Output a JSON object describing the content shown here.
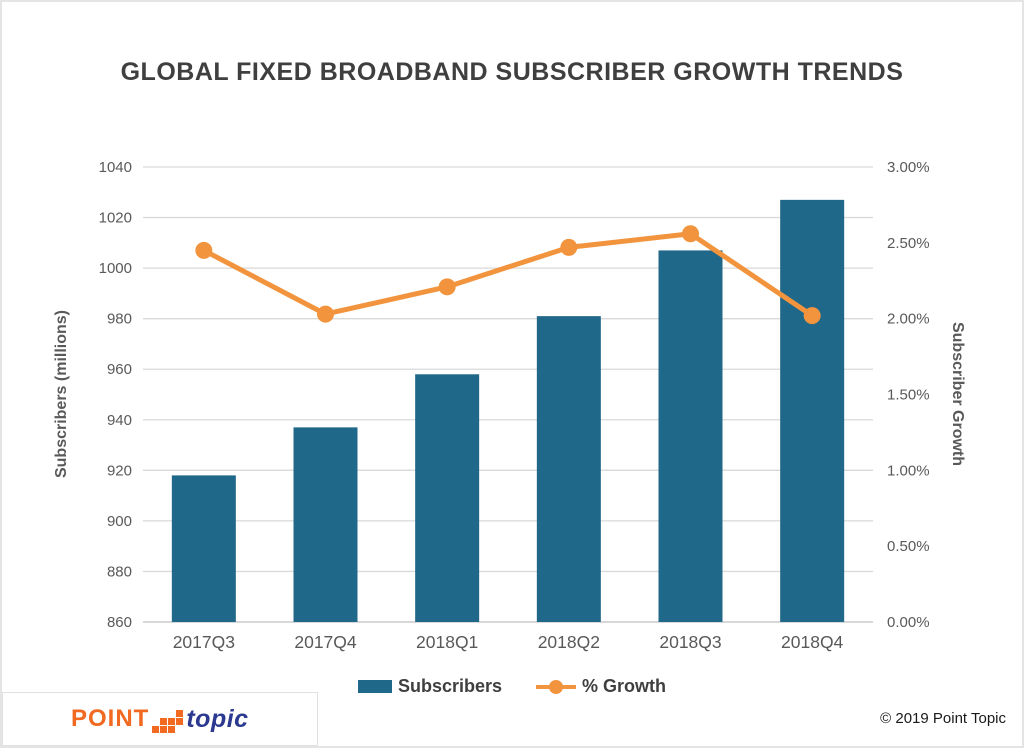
{
  "page": {
    "copyright": "© 2019 Point Topic",
    "logo": {
      "point": "POINT",
      "topic": "topic"
    }
  },
  "chart_data": {
    "type": "combo: bar + line, dual axis",
    "title": "GLOBAL FIXED BROADBAND SUBSCRIBER GROWTH TRENDS",
    "categories": [
      "2017Q3",
      "2017Q4",
      "2018Q1",
      "2018Q2",
      "2018Q3",
      "2018Q4"
    ],
    "series": [
      {
        "name": "Subscribers",
        "type": "bar",
        "axis": "left",
        "color": "#20688A",
        "values": [
          918,
          937,
          958,
          981,
          1007,
          1027
        ]
      },
      {
        "name": "% Growth",
        "type": "line",
        "axis": "right",
        "color": "#F2943D",
        "values": [
          2.45,
          2.03,
          2.21,
          2.47,
          2.56,
          2.02
        ]
      }
    ],
    "left_axis": {
      "title": "Subscribers (millions)",
      "min": 860,
      "max": 1040,
      "step": 20,
      "tick_labels": [
        "860",
        "880",
        "900",
        "920",
        "940",
        "960",
        "980",
        "1000",
        "1020",
        "1040"
      ]
    },
    "right_axis": {
      "title": "Subscriber Growth",
      "min": 0,
      "max": 3,
      "step": 0.5,
      "tick_labels": [
        "0.00%",
        "0.50%",
        "1.00%",
        "1.50%",
        "2.00%",
        "2.50%",
        "3.00%"
      ]
    },
    "grid": true,
    "legend_position": "bottom",
    "colors": {
      "gridline": "#D9D9D9",
      "baseline": "#C0C0C0",
      "tick_text": "#595959",
      "title_text": "#3F3F3F"
    }
  }
}
